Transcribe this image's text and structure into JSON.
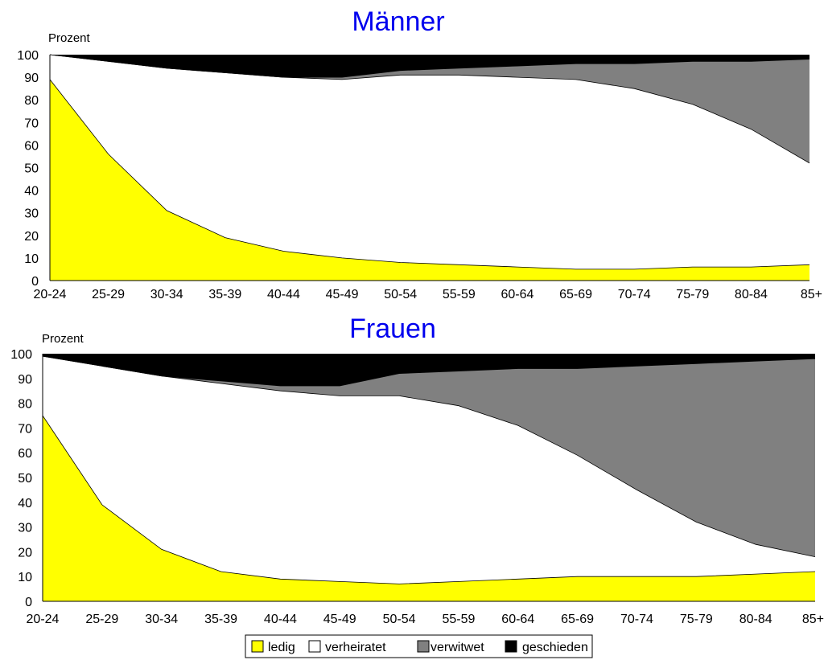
{
  "chart_data": [
    {
      "type": "area",
      "stacked": true,
      "title": "Männer",
      "ylabel": "Prozent",
      "ylim": [
        0,
        100
      ],
      "yticks": [
        "0",
        "10",
        "20",
        "30",
        "40",
        "50",
        "60",
        "70",
        "80",
        "90",
        "100"
      ],
      "categories": [
        "20-24",
        "25-29",
        "30-34",
        "35-39",
        "40-44",
        "45-49",
        "50-54",
        "55-59",
        "60-64",
        "65-69",
        "70-74",
        "75-79",
        "80-84",
        "85+"
      ],
      "series": [
        {
          "name": "ledig",
          "color": "#ffff00",
          "values": [
            89,
            56,
            31,
            19,
            13,
            10,
            8,
            7,
            6,
            5,
            5,
            6,
            6,
            7
          ]
        },
        {
          "name": "verheiratet",
          "color": "#ffffff",
          "values": [
            11,
            41,
            63,
            73,
            77,
            79,
            83,
            84,
            84,
            84,
            80,
            72,
            61,
            45
          ]
        },
        {
          "name": "verwitwet",
          "color": "#808080",
          "values": [
            0,
            0,
            0,
            0,
            0,
            1,
            2,
            3,
            5,
            7,
            11,
            19,
            30,
            46
          ]
        },
        {
          "name": "geschieden",
          "color": "#000000",
          "values": [
            0,
            3,
            6,
            8,
            10,
            10,
            7,
            6,
            5,
            4,
            4,
            3,
            3,
            2
          ]
        }
      ]
    },
    {
      "type": "area",
      "stacked": true,
      "title": "Frauen",
      "ylabel": "Prozent",
      "ylim": [
        0,
        100
      ],
      "yticks": [
        "0",
        "10",
        "20",
        "30",
        "40",
        "50",
        "60",
        "70",
        "80",
        "90",
        "100"
      ],
      "categories": [
        "20-24",
        "25-29",
        "30-34",
        "35-39",
        "40-44",
        "45-49",
        "50-54",
        "55-59",
        "60-64",
        "65-69",
        "70-74",
        "75-79",
        "80-84",
        "85+"
      ],
      "series": [
        {
          "name": "ledig",
          "color": "#ffff00",
          "values": [
            75,
            39,
            21,
            12,
            9,
            8,
            7,
            8,
            9,
            10,
            10,
            10,
            11,
            12
          ]
        },
        {
          "name": "verheiratet",
          "color": "#ffffff",
          "values": [
            24,
            56,
            70,
            76,
            76,
            75,
            76,
            71,
            62,
            49,
            35,
            22,
            12,
            6
          ]
        },
        {
          "name": "verwitwet",
          "color": "#808080",
          "values": [
            0,
            0,
            0,
            1,
            2,
            4,
            9,
            14,
            23,
            35,
            50,
            64,
            74,
            80
          ]
        },
        {
          "name": "geschieden",
          "color": "#000000",
          "values": [
            1,
            5,
            9,
            11,
            13,
            13,
            8,
            7,
            6,
            6,
            5,
            4,
            3,
            2
          ]
        }
      ]
    }
  ],
  "legend": {
    "position": "bottom",
    "items": [
      {
        "label": "ledig",
        "color": "#ffff00"
      },
      {
        "label": "verheiratet",
        "color": "#ffffff"
      },
      {
        "label": "verwitwet",
        "color": "#808080"
      },
      {
        "label": "geschieden",
        "color": "#000000"
      }
    ]
  }
}
